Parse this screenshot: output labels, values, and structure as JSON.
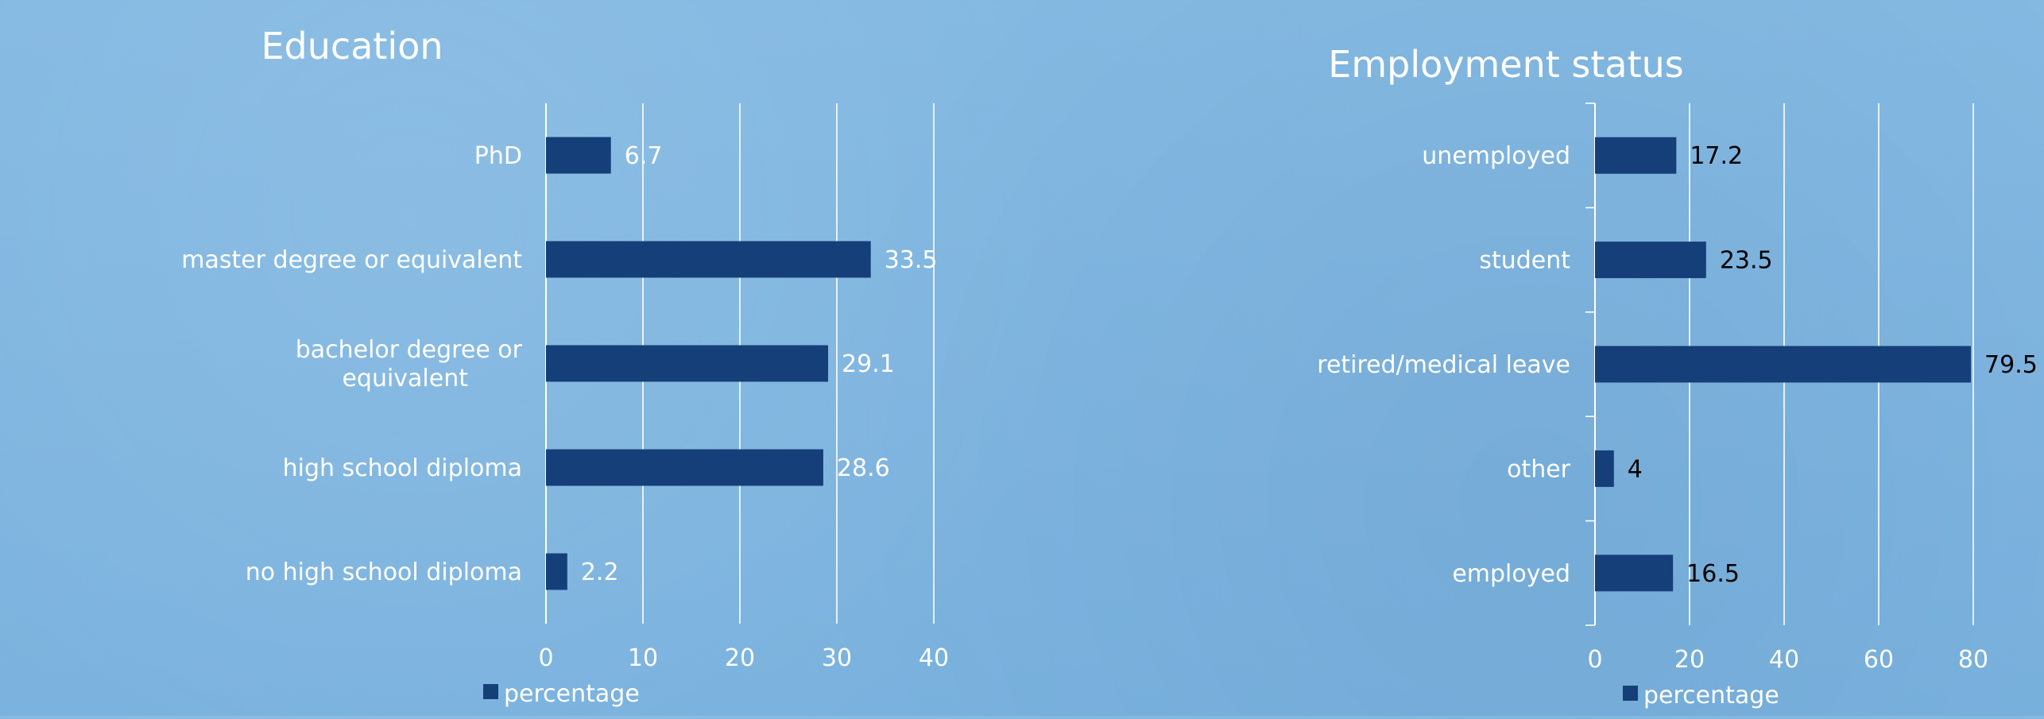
{
  "chart_data": [
    {
      "type": "bar",
      "orientation": "horizontal",
      "title": "Education",
      "categories": [
        "PhD",
        "master degree or equivalent",
        "bachelor degree or equivalent",
        "high school diploma",
        "no high school diploma"
      ],
      "category_lines": [
        [
          "PhD"
        ],
        [
          "master degree or equivalent"
        ],
        [
          "bachelor degree or",
          "equivalent"
        ],
        [
          "high school diploma"
        ],
        [
          "no high school diploma"
        ]
      ],
      "series": [
        {
          "name": "percentage",
          "values": [
            6.7,
            33.5,
            29.1,
            28.6,
            2.2
          ]
        }
      ],
      "xlim": [
        0,
        40
      ],
      "xticks": [
        0,
        10,
        20,
        30,
        40
      ],
      "grid": true,
      "legend": "bottom",
      "data_label_color": "#ffffff"
    },
    {
      "type": "bar",
      "orientation": "horizontal",
      "title": "Employment status",
      "categories": [
        "unemployed",
        "student",
        "retired/medical leave",
        "other",
        "employed"
      ],
      "category_lines": [
        [
          "unemployed"
        ],
        [
          "student"
        ],
        [
          "retired/medical leave"
        ],
        [
          "other"
        ],
        [
          "employed"
        ]
      ],
      "series": [
        {
          "name": "percentage",
          "values": [
            17.2,
            23.5,
            79.5,
            4,
            16.5
          ]
        }
      ],
      "xlim": [
        0,
        80
      ],
      "xticks": [
        0,
        20,
        40,
        60,
        80
      ],
      "grid": true,
      "legend": "bottom",
      "data_label_color": "#000000"
    }
  ],
  "colors": {
    "bar": "#153f78",
    "text": "#ffffff",
    "grid": "#ffffff"
  }
}
